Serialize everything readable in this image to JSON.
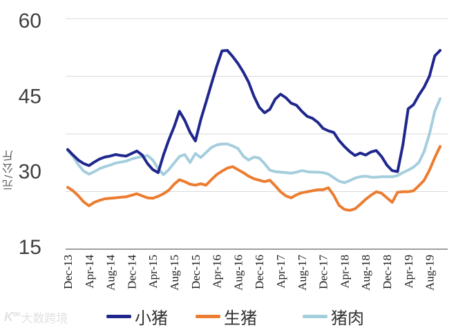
{
  "watermark": {
    "logo_text": "K°°",
    "text": "大数跨境"
  },
  "chart_data": {
    "type": "line",
    "title": "",
    "xlabel": "",
    "ylabel": "元/公斤",
    "ylim": [
      15,
      60
    ],
    "y_ticks": [
      60,
      45,
      30,
      15
    ],
    "grid": "horizontal",
    "legend_position": "bottom",
    "x_tick_labels": [
      "Dec-13",
      "Apr-14",
      "Aug-14",
      "Dec-14",
      "Apr-15",
      "Aug-15",
      "Dec-15",
      "Apr-16",
      "Aug-16",
      "Dec-16",
      "Apr-17",
      "Aug-17",
      "Dec-17",
      "Apr-18",
      "Aug-18",
      "Dec-18",
      "Apr-19",
      "Aug-19"
    ],
    "x": [
      "Dec-13",
      "Jan-14",
      "Feb-14",
      "Mar-14",
      "Apr-14",
      "May-14",
      "Jun-14",
      "Jul-14",
      "Aug-14",
      "Sep-14",
      "Oct-14",
      "Nov-14",
      "Dec-14",
      "Jan-15",
      "Feb-15",
      "Mar-15",
      "Apr-15",
      "May-15",
      "Jun-15",
      "Jul-15",
      "Aug-15",
      "Sep-15",
      "Oct-15",
      "Nov-15",
      "Dec-15",
      "Jan-16",
      "Feb-16",
      "Mar-16",
      "Apr-16",
      "May-16",
      "Jun-16",
      "Jul-16",
      "Aug-16",
      "Sep-16",
      "Oct-16",
      "Nov-16",
      "Dec-16",
      "Jan-17",
      "Feb-17",
      "Mar-17",
      "Apr-17",
      "May-17",
      "Jun-17",
      "Jul-17",
      "Aug-17",
      "Sep-17",
      "Oct-17",
      "Nov-17",
      "Dec-17",
      "Jan-18",
      "Feb-18",
      "Mar-18",
      "Apr-18",
      "May-18",
      "Jun-18",
      "Jul-18",
      "Aug-18",
      "Sep-18",
      "Oct-18",
      "Nov-18",
      "Dec-18",
      "Jan-19",
      "Feb-19",
      "Mar-19",
      "Apr-19",
      "May-19",
      "Jun-19",
      "Jul-19",
      "Aug-19",
      "Sep-19",
      "Oct-19"
    ],
    "series": [
      {
        "name": "小猪",
        "color": "#1F278D",
        "values": [
          34.4,
          33.3,
          32.3,
          31.6,
          31.2,
          31.9,
          32.5,
          32.9,
          33.1,
          33.4,
          33.2,
          33.1,
          33.6,
          34.1,
          33.3,
          31.6,
          30.4,
          29.8,
          33.3,
          36.3,
          38.9,
          42.0,
          40.2,
          37.8,
          36.1,
          40.3,
          43.8,
          47.4,
          50.9,
          54.0,
          54.1,
          52.9,
          51.5,
          49.8,
          47.8,
          45.0,
          42.8,
          41.7,
          42.4,
          44.4,
          45.4,
          44.7,
          43.6,
          43.2,
          42.0,
          41.0,
          40.6,
          39.8,
          38.6,
          38.1,
          37.8,
          36.2,
          35.0,
          34.0,
          33.2,
          33.7,
          33.3,
          33.9,
          34.2,
          33.0,
          31.3,
          30.2,
          30.0,
          35.3,
          42.5,
          43.3,
          45.2,
          46.8,
          49.0,
          53.0,
          54.1
        ]
      },
      {
        "name": "生猪",
        "color": "#EC7C30",
        "values": [
          26.9,
          26.2,
          25.2,
          24.0,
          23.2,
          23.9,
          24.3,
          24.6,
          24.7,
          24.8,
          24.9,
          25.0,
          25.3,
          25.6,
          25.2,
          24.8,
          24.7,
          25.1,
          25.6,
          26.3,
          27.5,
          28.4,
          28.0,
          27.5,
          27.3,
          27.6,
          27.3,
          28.4,
          29.4,
          30.1,
          30.7,
          31.0,
          30.4,
          29.8,
          29.1,
          28.6,
          28.3,
          28.0,
          28.3,
          27.2,
          26.0,
          25.2,
          24.8,
          25.4,
          25.8,
          26.0,
          26.2,
          26.4,
          26.4,
          26.8,
          25.3,
          23.3,
          22.5,
          22.3,
          22.6,
          23.5,
          24.5,
          25.3,
          26.0,
          25.7,
          24.8,
          23.9,
          25.9,
          26.0,
          26.0,
          26.2,
          27.2,
          28.3,
          30.3,
          32.8,
          35.0
        ]
      },
      {
        "name": "猪肉",
        "color": "#A5CEDD",
        "values": [
          34.2,
          33.0,
          31.4,
          30.1,
          29.5,
          30.0,
          30.6,
          31.0,
          31.3,
          31.7,
          31.9,
          32.1,
          32.5,
          32.8,
          33.0,
          33.2,
          32.3,
          30.6,
          29.4,
          30.4,
          31.7,
          33.0,
          33.4,
          31.8,
          33.6,
          32.8,
          33.8,
          34.8,
          35.3,
          35.5,
          35.5,
          35.1,
          34.6,
          33.1,
          32.3,
          32.9,
          32.7,
          31.6,
          30.3,
          30.0,
          29.9,
          29.8,
          29.7,
          29.9,
          30.2,
          30.0,
          29.9,
          29.9,
          29.8,
          29.5,
          28.8,
          28.1,
          27.8,
          28.2,
          28.7,
          29.0,
          29.1,
          28.9,
          28.9,
          29.0,
          29.0,
          29.0,
          29.2,
          29.8,
          30.3,
          30.9,
          31.8,
          34.0,
          37.5,
          42.0,
          44.5
        ]
      }
    ],
    "colors": {
      "grid": "#D9D9D9",
      "axis": "#7F7F7F",
      "y_tick_text": "#3F3F3F",
      "x_tick_text": "#202020"
    }
  }
}
